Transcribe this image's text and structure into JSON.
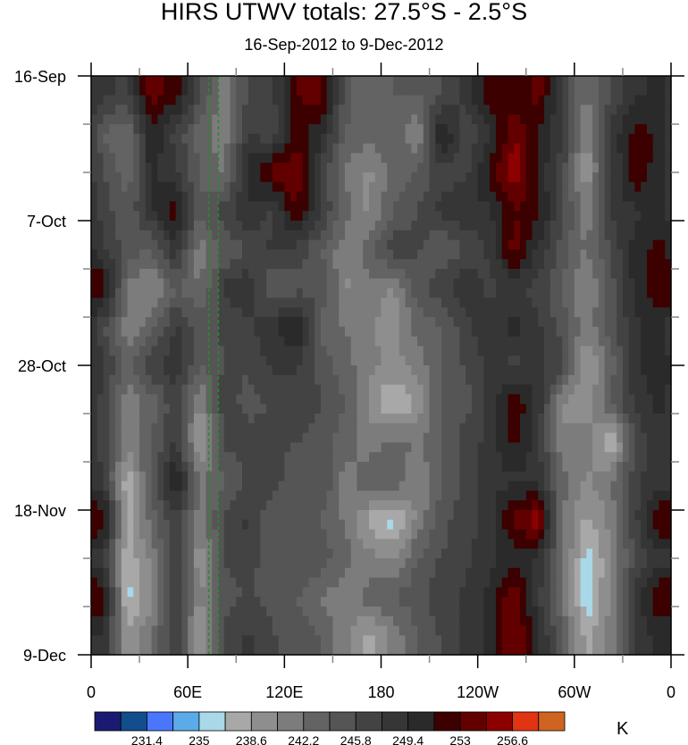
{
  "chart_data": {
    "type": "heatmap",
    "title": "HIRS UTWV totals: 27.5°S - 2.5°S",
    "subtitle": "16-Sep-2012 to 9-Dec-2012",
    "x_ticks": [
      "0",
      "60E",
      "120E",
      "180",
      "120W",
      "60W",
      "0"
    ],
    "x_tick_values": [
      0,
      60,
      120,
      180,
      240,
      300,
      360
    ],
    "xlim": [
      0,
      360
    ],
    "y_ticks": [
      "16-Sep",
      "7-Oct",
      "28-Oct",
      "18-Nov",
      "9-Dec"
    ],
    "y_tick_days": [
      0,
      21,
      42,
      63,
      84
    ],
    "ylim_days": [
      0,
      84
    ],
    "units": "K",
    "colorbar_labels": [
      "231.4",
      "235",
      "238.6",
      "242.2",
      "245.8",
      "249.4",
      "253",
      "256.6"
    ],
    "levels": [
      229.6,
      231.4,
      233.2,
      235,
      236.8,
      238.6,
      240.4,
      242.2,
      244,
      245.8,
      247.6,
      249.4,
      251.2,
      253,
      254.8,
      256.6,
      258.4
    ],
    "colors": [
      "#1b1a72",
      "#124d8c",
      "#4a76fc",
      "#5aabe8",
      "#a9d8e8",
      "#a8a8a8",
      "#8e8e8e",
      "#7c7c7c",
      "#636363",
      "#555555",
      "#434343",
      "#363636",
      "#2a2a2a",
      "#3c0000",
      "#620000",
      "#8d0000",
      "#e03412",
      "#cf6420"
    ],
    "annotation_longitudes": [
      73,
      79
    ],
    "annotation_color": "#2a8a2a",
    "grid_lon_step": 15,
    "grid_day_step": 6,
    "values": [
      [
        248,
        247,
        254,
        252,
        246,
        241,
        246,
        247,
        253,
        254,
        245,
        242,
        244,
        244,
        246,
        248,
        253,
        251,
        254,
        247,
        242,
        246,
        249,
        250
      ],
      [
        244,
        242,
        251,
        247,
        243,
        241,
        248,
        246,
        252,
        250,
        244,
        243,
        244,
        240,
        252,
        246,
        249,
        255,
        251,
        248,
        240,
        248,
        252,
        251
      ],
      [
        246,
        243,
        250,
        248,
        244,
        242,
        250,
        254,
        255,
        247,
        242,
        240,
        243,
        244,
        247,
        247,
        252,
        256,
        251,
        246,
        239,
        247,
        253,
        250
      ],
      [
        247,
        244,
        249,
        252,
        244,
        247,
        249,
        247,
        253,
        248,
        243,
        240,
        244,
        246,
        248,
        249,
        249,
        253,
        252,
        246,
        241,
        248,
        249,
        250
      ],
      [
        248,
        245,
        244,
        249,
        241,
        244,
        246,
        248,
        247,
        244,
        241,
        243,
        247,
        246,
        244,
        246,
        248,
        254,
        249,
        245,
        242,
        246,
        250,
        252
      ],
      [
        253,
        242,
        240,
        244,
        242,
        248,
        249,
        244,
        245,
        246,
        240,
        242,
        240,
        245,
        247,
        249,
        247,
        248,
        247,
        244,
        240,
        245,
        250,
        253
      ],
      [
        246,
        241,
        243,
        248,
        245,
        246,
        247,
        249,
        252,
        243,
        242,
        241,
        239,
        243,
        244,
        247,
        249,
        250,
        248,
        245,
        241,
        245,
        249,
        250
      ],
      [
        248,
        243,
        247,
        249,
        244,
        246,
        246,
        248,
        248,
        245,
        243,
        241,
        240,
        241,
        244,
        246,
        248,
        247,
        248,
        247,
        238,
        243,
        249,
        251
      ],
      [
        247,
        241,
        243,
        247,
        240,
        247,
        245,
        246,
        247,
        246,
        244,
        240,
        236,
        239,
        244,
        245,
        248,
        253,
        249,
        240,
        239,
        244,
        248,
        250
      ],
      [
        247,
        241,
        244,
        248,
        238,
        246,
        247,
        246,
        246,
        245,
        243,
        241,
        243,
        242,
        244,
        247,
        248,
        252,
        248,
        241,
        242,
        236,
        246,
        249
      ],
      [
        248,
        237,
        245,
        252,
        242,
        244,
        246,
        247,
        244,
        246,
        241,
        244,
        244,
        240,
        244,
        246,
        249,
        249,
        249,
        243,
        240,
        242,
        247,
        249
      ],
      [
        253,
        238,
        243,
        247,
        241,
        246,
        248,
        244,
        245,
        244,
        242,
        238,
        236,
        241,
        245,
        247,
        248,
        254,
        256,
        242,
        238,
        241,
        247,
        253
      ],
      [
        248,
        237,
        241,
        248,
        239,
        246,
        247,
        244,
        246,
        245,
        243,
        241,
        240,
        244,
        246,
        247,
        249,
        250,
        249,
        243,
        236,
        240,
        246,
        249
      ],
      [
        253,
        236,
        240,
        247,
        240,
        245,
        246,
        245,
        244,
        242,
        241,
        243,
        244,
        245,
        247,
        248,
        250,
        255,
        248,
        242,
        235,
        241,
        248,
        253
      ],
      [
        249,
        239,
        242,
        248,
        238,
        246,
        248,
        246,
        245,
        244,
        241,
        238,
        241,
        244,
        246,
        248,
        250,
        255,
        250,
        244,
        238,
        241,
        248,
        250
      ]
    ]
  }
}
